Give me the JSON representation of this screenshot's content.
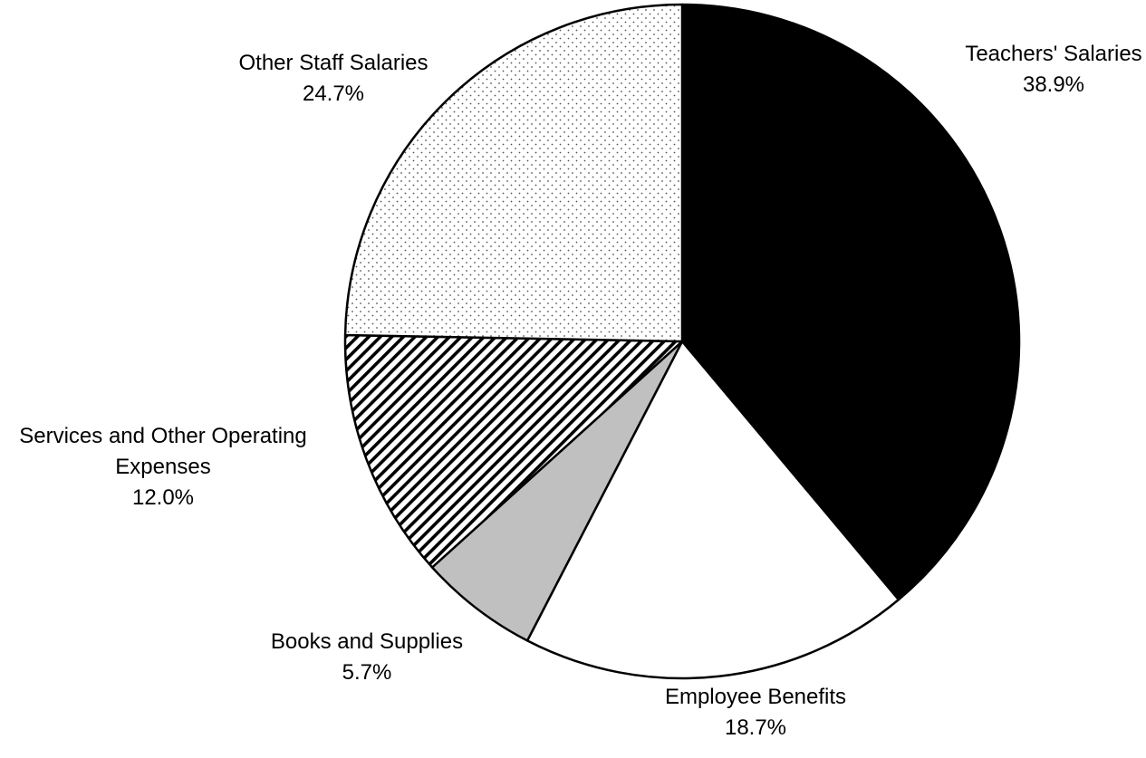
{
  "chart_data": {
    "type": "pie",
    "title": "",
    "start": "12 o'clock",
    "direction": "clockwise",
    "slices": [
      {
        "label_lines": [
          "Teachers' Salaries"
        ],
        "pct_text": "38.9%",
        "value": 38.9,
        "fill": "solid",
        "color": "#000000"
      },
      {
        "label_lines": [
          "Employee Benefits"
        ],
        "pct_text": "18.7%",
        "value": 18.7,
        "fill": "solid",
        "color": "#ffffff"
      },
      {
        "label_lines": [
          "Books and Supplies"
        ],
        "pct_text": "5.7%",
        "value": 5.7,
        "fill": "solid",
        "color": "#c0c0c0"
      },
      {
        "label_lines": [
          "Services and Other Operating",
          "Expenses"
        ],
        "pct_text": "12.0%",
        "value": 12.0,
        "fill": "diagonal-stripes",
        "color": "#000000"
      },
      {
        "label_lines": [
          "Other Staff Salaries"
        ],
        "pct_text": "24.7%",
        "value": 24.7,
        "fill": "dots",
        "color": "#808080"
      }
    ]
  }
}
